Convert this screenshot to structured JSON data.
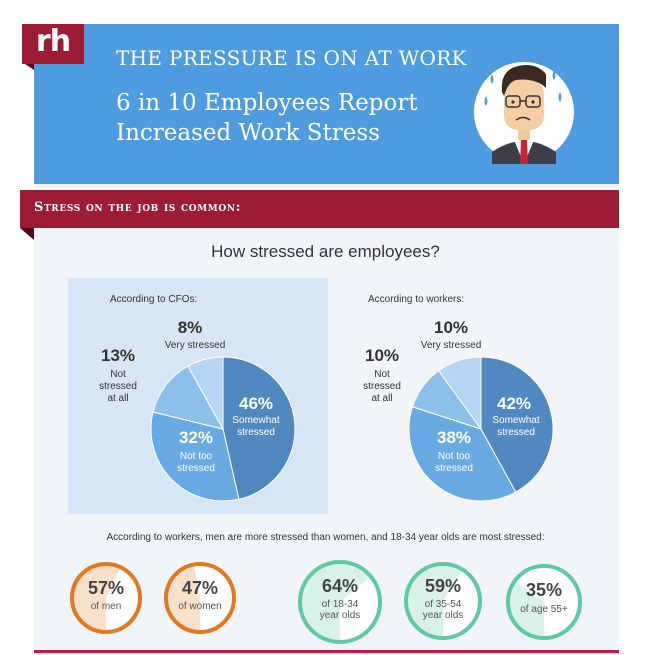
{
  "brand": {
    "logo_text": "rh"
  },
  "hero": {
    "kicker": "THE PRESSURE IS ON AT WORK",
    "title_line1": "6 in 10 Employees Report",
    "title_line2": "Increased Work Stress",
    "bg_color": "#4f9be0"
  },
  "section": {
    "title": "Stress on the job is common:",
    "color": "#9c1c35"
  },
  "question": "How stressed are employees?",
  "cfo": {
    "source": "According to CFOs:",
    "somewhat": {
      "pct": "46%",
      "label1": "Somewhat",
      "label2": "stressed"
    },
    "not_too": {
      "pct": "32%",
      "label1": "Not too",
      "label2": "stressed"
    },
    "not_at_all": {
      "pct": "13%",
      "label1": "Not",
      "label2": "stressed",
      "label3": "at all"
    },
    "very": {
      "pct": "8%",
      "label1": "Very stressed"
    }
  },
  "workers": {
    "source": "According to workers:",
    "somewhat": {
      "pct": "42%",
      "label1": "Somewhat",
      "label2": "stressed"
    },
    "not_too": {
      "pct": "38%",
      "label1": "Not too",
      "label2": "stressed"
    },
    "not_at_all": {
      "pct": "10%",
      "label1": "Not",
      "label2": "stressed",
      "label3": "at all"
    },
    "very": {
      "pct": "10%",
      "label1": "Very stressed"
    }
  },
  "chart_data": [
    {
      "type": "pie",
      "title": "According to CFOs:",
      "categories": [
        "Somewhat stressed",
        "Not too stressed",
        "Not stressed at all",
        "Very stressed"
      ],
      "values": [
        46,
        32,
        13,
        8
      ]
    },
    {
      "type": "pie",
      "title": "According to workers:",
      "categories": [
        "Somewhat stressed",
        "Not too stressed",
        "Not stressed at all",
        "Very stressed"
      ],
      "values": [
        42,
        38,
        10,
        10
      ]
    }
  ],
  "demographics_note": "According to workers, men are more stressed than women, and 18-34 year olds are most stressed:",
  "demographics": [
    {
      "pct": "57%",
      "label1": "of men",
      "label2": "",
      "value": 57
    },
    {
      "pct": "47%",
      "label1": "of women",
      "label2": "",
      "value": 47
    },
    {
      "pct": "64%",
      "label1": "of 18-34",
      "label2": "year olds",
      "value": 64
    },
    {
      "pct": "59%",
      "label1": "of 35-54",
      "label2": "year olds",
      "value": 59
    },
    {
      "pct": "35%",
      "label1": "of age 55+",
      "label2": "",
      "value": 35
    }
  ],
  "colors": {
    "pie": [
      "#5088bf",
      "#6aaae2",
      "#8dbfeb",
      "#b5d5f2"
    ],
    "orange_ring": "#e2791f",
    "orange_fill": "#f9e0c8",
    "green_ring": "#5ec9a5",
    "green_fill": "#d9f2e8"
  }
}
